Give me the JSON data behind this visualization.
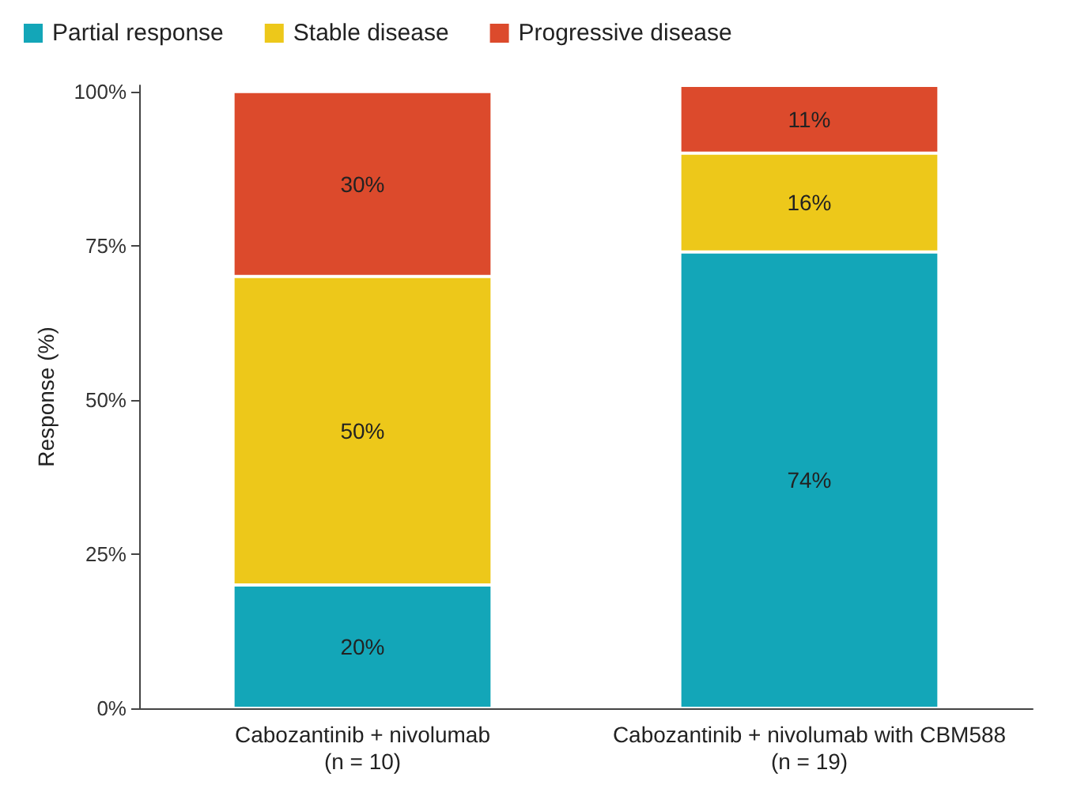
{
  "chart_data": {
    "type": "bar",
    "stacked": true,
    "ylabel": "Response (%)",
    "categories": [
      "Cabozantinib + nivolumab\n(n = 10)",
      "Cabozantinib + nivolumab with CBM588\n(n = 19)"
    ],
    "series": [
      {
        "name": "Partial response",
        "color": "#13a6b8",
        "values": [
          20,
          74
        ],
        "value_labels": [
          "20%",
          "74%"
        ]
      },
      {
        "name": "Stable disease",
        "color": "#edc81a",
        "values": [
          50,
          16
        ],
        "value_labels": [
          "50%",
          "16%"
        ]
      },
      {
        "name": "Progressive disease",
        "color": "#dc4a2c",
        "values": [
          30,
          11
        ],
        "value_labels": [
          "30%",
          "11%"
        ]
      }
    ],
    "ylim": [
      0,
      101
    ],
    "yticks": [
      {
        "value": 0,
        "label": "0%"
      },
      {
        "value": 25,
        "label": "25%"
      },
      {
        "value": 50,
        "label": "50%"
      },
      {
        "value": 75,
        "label": "75%"
      },
      {
        "value": 100,
        "label": "100%"
      }
    ],
    "grid": false,
    "legend": "top left"
  }
}
